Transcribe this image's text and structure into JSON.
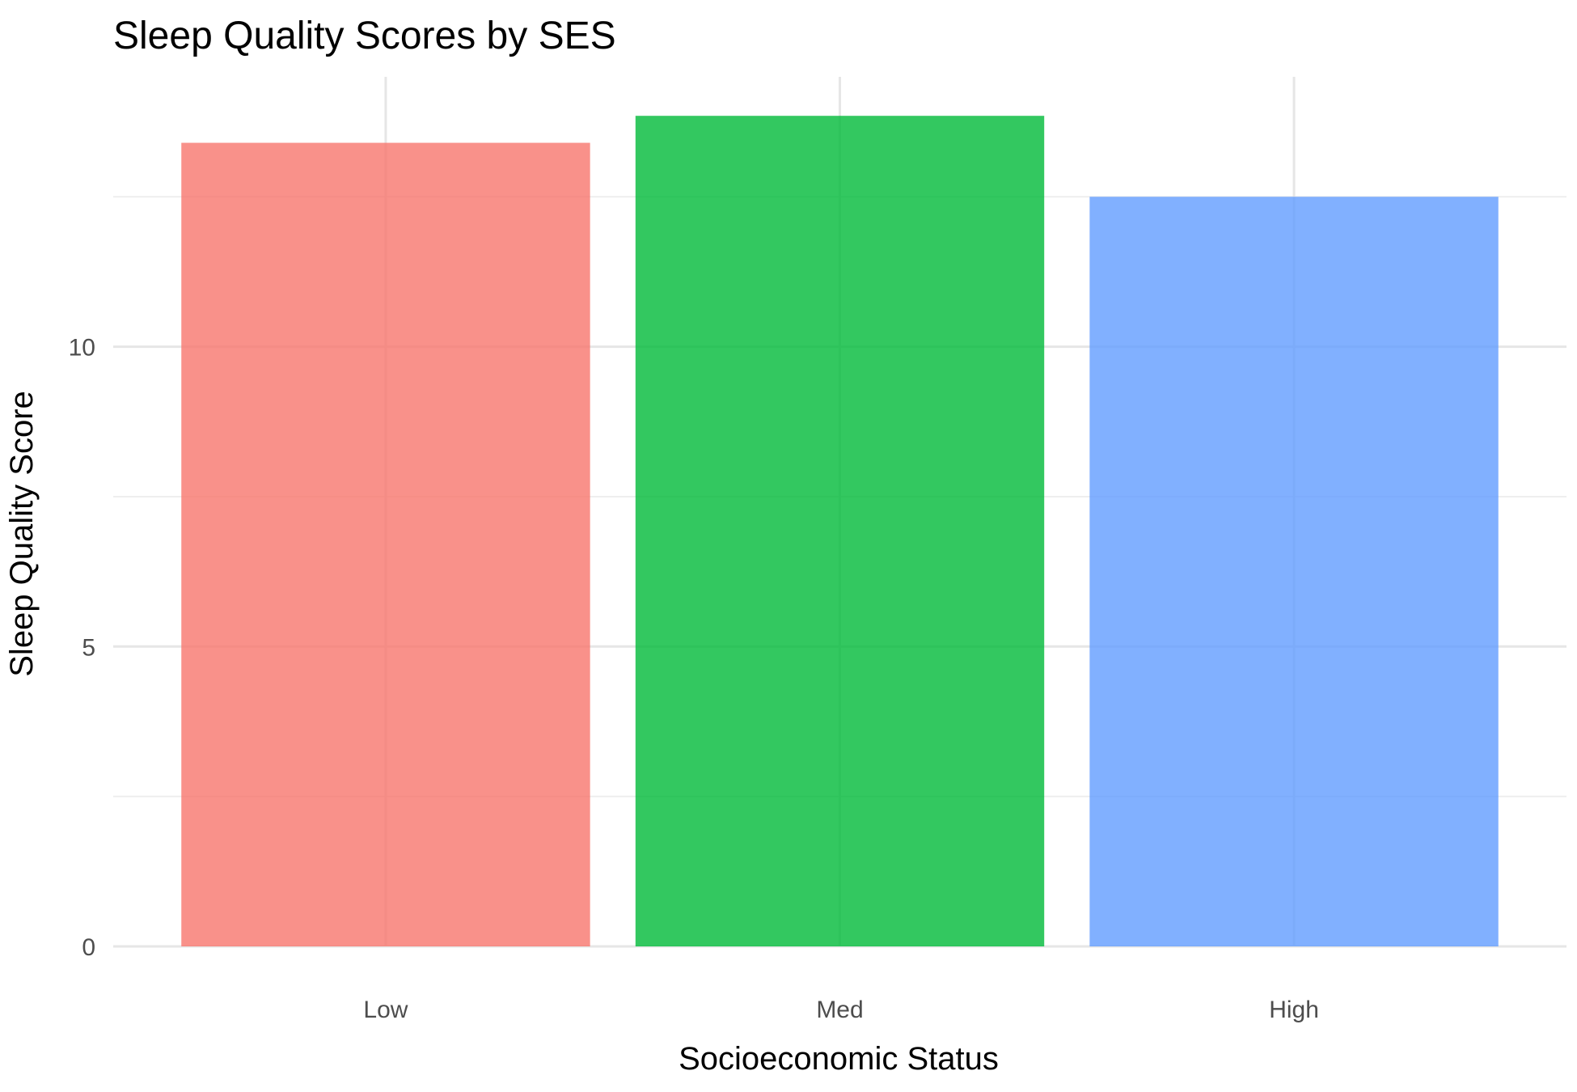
{
  "chart_data": {
    "type": "bar",
    "title": "Sleep Quality Scores by SES",
    "xlabel": "Socioeconomic Status",
    "ylabel": "Sleep Quality Score",
    "categories": [
      "Low",
      "Med",
      "High"
    ],
    "values": [
      13.4,
      13.85,
      12.5
    ],
    "colors": [
      "#F8766D",
      "#00BA38",
      "#619CFF"
    ],
    "bar_opacity": 0.8,
    "ylim": [
      0,
      14.5
    ],
    "yticks": [
      0,
      5,
      10
    ],
    "yticks_labels": [
      "0",
      "5",
      "10"
    ],
    "grid": true,
    "legend": "none"
  }
}
